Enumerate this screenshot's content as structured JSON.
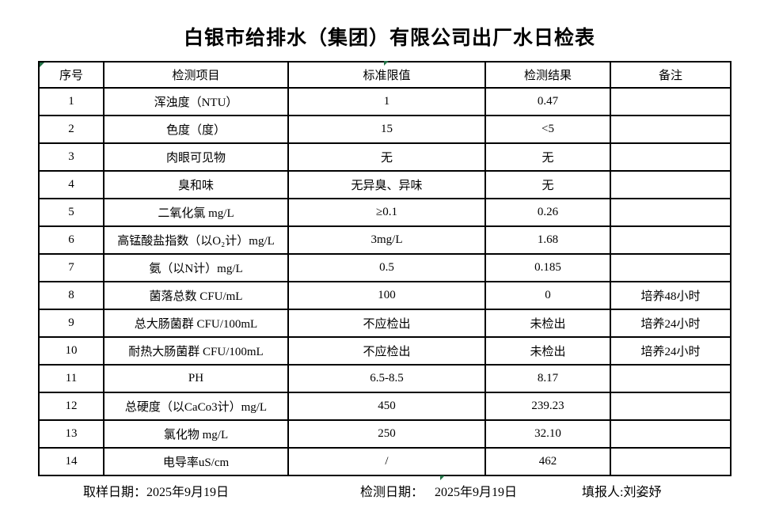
{
  "page": {
    "title": "白银市给排水（集团）有限公司出厂水日检表"
  },
  "table": {
    "headers": [
      "序号",
      "检测项目",
      "标准限值",
      "检测结果",
      "备注"
    ],
    "rows": [
      {
        "no": "1",
        "item": "浑浊度（NTU）",
        "limit": "1",
        "result": "0.47",
        "note": ""
      },
      {
        "no": "2",
        "item": "色度（度）",
        "limit": "15",
        "result": "<5",
        "note": ""
      },
      {
        "no": "3",
        "item": "肉眼可见物",
        "limit": "无",
        "result": "无",
        "note": ""
      },
      {
        "no": "4",
        "item": "臭和味",
        "limit": "无异臭、异味",
        "result": "无",
        "note": ""
      },
      {
        "no": "5",
        "item": "二氧化氯 mg/L",
        "limit": "≥0.1",
        "result": "0.26",
        "note": ""
      },
      {
        "no": "6",
        "item": "高锰酸盐指数（以O₂计）mg/L",
        "limit": "3mg/L",
        "result": "1.68",
        "note": ""
      },
      {
        "no": "7",
        "item": "氨（以N计）mg/L",
        "limit": "0.5",
        "result": "0.185",
        "note": ""
      },
      {
        "no": "8",
        "item": "菌落总数 CFU/mL",
        "limit": "100",
        "result": "0",
        "note": "培养48小时"
      },
      {
        "no": "9",
        "item": "总大肠菌群 CFU/100mL",
        "limit": "不应检出",
        "result": "未检出",
        "note": "培养24小时"
      },
      {
        "no": "10",
        "item": "耐热大肠菌群 CFU/100mL",
        "limit": "不应检出",
        "result": "未检出",
        "note": "培养24小时"
      },
      {
        "no": "11",
        "item": "PH",
        "limit": "6.5-8.5",
        "result": "8.17",
        "note": ""
      },
      {
        "no": "12",
        "item": "总硬度（以CaCo3计）mg/L",
        "limit": "450",
        "result": "239.23",
        "note": ""
      },
      {
        "no": "13",
        "item": "氯化物 mg/L",
        "limit": "250",
        "result": "32.10",
        "note": ""
      },
      {
        "no": "14",
        "item": "电导率uS/cm",
        "limit": "/",
        "result": "462",
        "note": ""
      }
    ]
  },
  "footer": {
    "sampling_label": "取样日期：",
    "sampling_date": "2025年9月19日",
    "test_label": "检测日期：",
    "test_date": "2025年9月19日",
    "reporter_label": "填报人:",
    "reporter_name": "刘姿妤"
  },
  "colors": {
    "marker_green": "#217346",
    "border_black": "#000000",
    "page_background": "#ffffff"
  }
}
